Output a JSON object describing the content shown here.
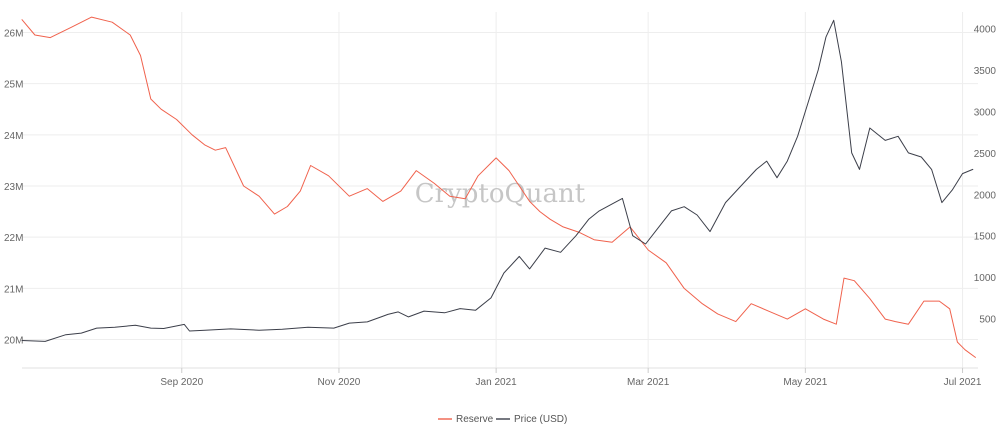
{
  "watermark": "CryptoQuant",
  "chart_data": {
    "type": "line",
    "title": "",
    "xlabel": "",
    "ylabel_left": "",
    "ylabel_right": "",
    "x_ticks": [
      "Sep 2020",
      "Nov 2020",
      "Jan 2021",
      "Mar 2021",
      "May 2021",
      "Jul 2021"
    ],
    "y_left_ticks": [
      "20M",
      "21M",
      "22M",
      "23M",
      "24M",
      "25M",
      "26M"
    ],
    "y_right_ticks": [
      "500",
      "1000",
      "1500",
      "2000",
      "2500",
      "3000",
      "3500",
      "4000"
    ],
    "ylim_left": [
      19.6,
      26.4
    ],
    "ylim_right": [
      0,
      4200
    ],
    "xlim": [
      "2020-07-01",
      "2021-07-07"
    ],
    "grid": true,
    "legend_position": "bottom-center",
    "series": [
      {
        "name": "Reserve",
        "color": "#f0624d",
        "axis": "left",
        "x": [
          "2020-07-01",
          "2020-07-06",
          "2020-07-12",
          "2020-07-20",
          "2020-07-28",
          "2020-08-05",
          "2020-08-12",
          "2020-08-16",
          "2020-08-20",
          "2020-08-24",
          "2020-08-30",
          "2020-09-05",
          "2020-09-10",
          "2020-09-14",
          "2020-09-18",
          "2020-09-25",
          "2020-10-01",
          "2020-10-07",
          "2020-10-12",
          "2020-10-17",
          "2020-10-21",
          "2020-10-28",
          "2020-11-05",
          "2020-11-12",
          "2020-11-18",
          "2020-11-25",
          "2020-12-01",
          "2020-12-08",
          "2020-12-14",
          "2020-12-20",
          "2020-12-25",
          "2021-01-01",
          "2021-01-06",
          "2021-01-10",
          "2021-01-14",
          "2021-01-18",
          "2021-01-22",
          "2021-01-27",
          "2021-02-02",
          "2021-02-08",
          "2021-02-15",
          "2021-02-22",
          "2021-03-01",
          "2021-03-08",
          "2021-03-15",
          "2021-03-22",
          "2021-03-28",
          "2021-04-04",
          "2021-04-10",
          "2021-04-17",
          "2021-04-24",
          "2021-05-01",
          "2021-05-08",
          "2021-05-13",
          "2021-05-16",
          "2021-05-20",
          "2021-05-26",
          "2021-06-01",
          "2021-06-05",
          "2021-06-10",
          "2021-06-16",
          "2021-06-22",
          "2021-06-26",
          "2021-06-29",
          "2021-07-02",
          "2021-07-06"
        ],
        "values": [
          26.25,
          25.95,
          25.9,
          26.1,
          26.3,
          26.2,
          25.95,
          25.55,
          24.7,
          24.5,
          24.3,
          24.0,
          23.8,
          23.7,
          23.75,
          23.0,
          22.8,
          22.45,
          22.6,
          22.9,
          23.4,
          23.2,
          22.8,
          22.95,
          22.7,
          22.9,
          23.3,
          23.05,
          22.8,
          22.75,
          23.2,
          23.55,
          23.3,
          23.0,
          22.7,
          22.5,
          22.35,
          22.2,
          22.1,
          21.95,
          21.9,
          22.2,
          21.75,
          21.5,
          21.0,
          20.7,
          20.5,
          20.35,
          20.7,
          20.55,
          20.4,
          20.6,
          20.4,
          20.3,
          21.2,
          21.15,
          20.8,
          20.4,
          20.35,
          20.3,
          20.75,
          20.75,
          20.6,
          19.95,
          19.8,
          19.65
        ]
      },
      {
        "name": "Price (USD)",
        "color": "#3c3f4a",
        "axis": "right",
        "x": [
          "2020-07-01",
          "2020-07-10",
          "2020-07-18",
          "2020-07-24",
          "2020-07-30",
          "2020-08-06",
          "2020-08-14",
          "2020-08-20",
          "2020-08-25",
          "2020-09-02",
          "2020-09-04",
          "2020-09-10",
          "2020-09-20",
          "2020-10-01",
          "2020-10-10",
          "2020-10-20",
          "2020-10-30",
          "2020-11-05",
          "2020-11-12",
          "2020-11-20",
          "2020-11-24",
          "2020-11-28",
          "2020-12-04",
          "2020-12-12",
          "2020-12-18",
          "2020-12-24",
          "2020-12-30",
          "2021-01-04",
          "2021-01-10",
          "2021-01-14",
          "2021-01-20",
          "2021-01-26",
          "2021-02-01",
          "2021-02-06",
          "2021-02-10",
          "2021-02-16",
          "2021-02-19",
          "2021-02-23",
          "2021-02-28",
          "2021-03-05",
          "2021-03-10",
          "2021-03-15",
          "2021-03-20",
          "2021-03-25",
          "2021-03-31",
          "2021-04-06",
          "2021-04-12",
          "2021-04-16",
          "2021-04-20",
          "2021-04-24",
          "2021-04-28",
          "2021-05-03",
          "2021-05-06",
          "2021-05-09",
          "2021-05-12",
          "2021-05-15",
          "2021-05-19",
          "2021-05-22",
          "2021-05-26",
          "2021-06-01",
          "2021-06-06",
          "2021-06-10",
          "2021-06-15",
          "2021-06-19",
          "2021-06-23",
          "2021-06-27",
          "2021-07-01",
          "2021-07-05"
        ],
        "values": [
          235,
          225,
          305,
          325,
          385,
          395,
          420,
          385,
          380,
          430,
          350,
          360,
          375,
          360,
          370,
          395,
          385,
          445,
          460,
          550,
          580,
          520,
          590,
          570,
          620,
          600,
          750,
          1050,
          1250,
          1100,
          1350,
          1300,
          1500,
          1700,
          1800,
          1900,
          1950,
          1500,
          1400,
          1600,
          1800,
          1850,
          1750,
          1550,
          1900,
          2100,
          2300,
          2400,
          2200,
          2400,
          2700,
          3200,
          3500,
          3900,
          4100,
          3600,
          2500,
          2300,
          2800,
          2650,
          2700,
          2500,
          2450,
          2300,
          1900,
          2050,
          2250,
          2300
        ]
      }
    ]
  }
}
